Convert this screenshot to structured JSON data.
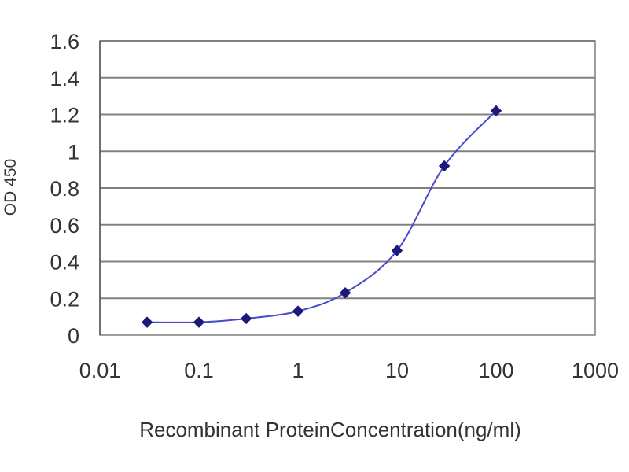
{
  "chart_data": {
    "type": "scatter",
    "title": "",
    "xlabel": "Recombinant ProteinConcentration(ng/ml)",
    "ylabel": "OD 450",
    "x_scale": "log",
    "xlim": [
      0.01,
      1000
    ],
    "ylim": [
      0,
      1.6
    ],
    "x_ticks": [
      "0.01",
      "0.1",
      "1",
      "10",
      "100",
      "1000"
    ],
    "y_ticks": [
      "0",
      "0.2",
      "0.4",
      "0.6",
      "0.8",
      "1",
      "1.2",
      "1.4",
      "1.6"
    ],
    "grid": true,
    "legend": "none",
    "series": [
      {
        "x": [
          0.03,
          0.1,
          0.3,
          1,
          3,
          10,
          30,
          100
        ],
        "y": [
          0.07,
          0.07,
          0.09,
          0.13,
          0.23,
          0.46,
          0.92,
          1.22
        ],
        "line": "smooth",
        "marker": "diamond"
      }
    ],
    "colors": {
      "marker": "#1a1a7a",
      "line": "#4a4acc",
      "grid": "#808080",
      "plot_border": "#7f7f7f"
    }
  }
}
